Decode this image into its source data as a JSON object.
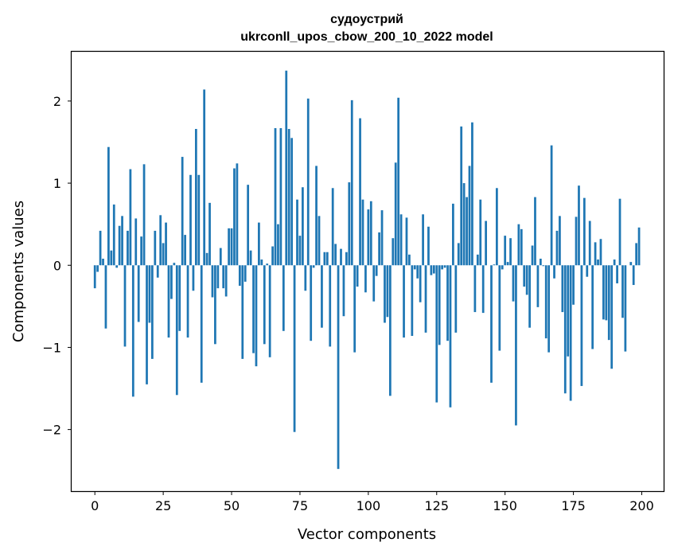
{
  "chart_data": {
    "type": "bar",
    "title": "судоустрий",
    "subtitle": "ukrconll_upos_cbow_200_10_2022 model",
    "xlabel": "Vector components",
    "ylabel": "Components values",
    "xlim": [
      -8.5,
      208
    ],
    "ylim": [
      -2.75,
      2.6
    ],
    "xticks": [
      0,
      25,
      50,
      75,
      100,
      125,
      150,
      175,
      200
    ],
    "xtick_labels": [
      "0",
      "25",
      "50",
      "75",
      "100",
      "125",
      "150",
      "175",
      "200"
    ],
    "yticks": [
      -2,
      -1,
      0,
      1,
      2
    ],
    "ytick_labels": [
      "−2",
      "−1",
      "0",
      "1",
      "2"
    ],
    "grid": false,
    "bar_color": "#1f77b4",
    "x": [
      0,
      1,
      2,
      3,
      4,
      5,
      6,
      7,
      8,
      9,
      10,
      11,
      12,
      13,
      14,
      15,
      16,
      17,
      18,
      19,
      20,
      21,
      22,
      23,
      24,
      25,
      26,
      27,
      28,
      29,
      30,
      31,
      32,
      33,
      34,
      35,
      36,
      37,
      38,
      39,
      40,
      41,
      42,
      43,
      44,
      45,
      46,
      47,
      48,
      49,
      50,
      51,
      52,
      53,
      54,
      55,
      56,
      57,
      58,
      59,
      60,
      61,
      62,
      63,
      64,
      65,
      66,
      67,
      68,
      69,
      70,
      71,
      72,
      73,
      74,
      75,
      76,
      77,
      78,
      79,
      80,
      81,
      82,
      83,
      84,
      85,
      86,
      87,
      88,
      89,
      90,
      91,
      92,
      93,
      94,
      95,
      96,
      97,
      98,
      99,
      100,
      101,
      102,
      103,
      104,
      105,
      106,
      107,
      108,
      109,
      110,
      111,
      112,
      113,
      114,
      115,
      116,
      117,
      118,
      119,
      120,
      121,
      122,
      123,
      124,
      125,
      126,
      127,
      128,
      129,
      130,
      131,
      132,
      133,
      134,
      135,
      136,
      137,
      138,
      139,
      140,
      141,
      142,
      143,
      144,
      145,
      146,
      147,
      148,
      149,
      150,
      151,
      152,
      153,
      154,
      155,
      156,
      157,
      158,
      159,
      160,
      161,
      162,
      163,
      164,
      165,
      166,
      167,
      168,
      169,
      170,
      171,
      172,
      173,
      174,
      175,
      176,
      177,
      178,
      179,
      180,
      181,
      182,
      183,
      184,
      185,
      186,
      187,
      188,
      189,
      190,
      191,
      192,
      193,
      194,
      195,
      196,
      197,
      198,
      199
    ],
    "values": [
      -0.28,
      -0.08,
      0.42,
      0.08,
      -0.77,
      1.44,
      0.18,
      0.74,
      -0.03,
      0.48,
      0.6,
      -0.99,
      0.42,
      1.17,
      -1.6,
      0.57,
      -0.69,
      0.35,
      1.23,
      -1.45,
      -0.7,
      -1.14,
      0.42,
      -0.15,
      0.61,
      0.27,
      0.52,
      -0.88,
      -0.41,
      0.03,
      -1.58,
      -0.8,
      1.32,
      0.37,
      -0.88,
      1.1,
      -0.31,
      1.66,
      1.1,
      -1.43,
      2.14,
      0.15,
      0.76,
      -0.39,
      -0.96,
      -0.28,
      0.21,
      -0.28,
      -0.38,
      0.45,
      0.45,
      1.18,
      1.24,
      -0.25,
      -1.14,
      -0.2,
      0.98,
      0.18,
      -1.07,
      -1.23,
      0.52,
      0.07,
      -0.96,
      0.02,
      -1.12,
      0.23,
      1.67,
      0.5,
      1.67,
      -0.8,
      2.37,
      1.66,
      1.55,
      -2.03,
      0.8,
      0.36,
      0.95,
      -0.31,
      2.03,
      -0.92,
      -0.03,
      1.21,
      0.6,
      -0.76,
      0.16,
      0.16,
      -0.99,
      0.94,
      0.26,
      -2.48,
      0.2,
      -0.62,
      0.16,
      1.01,
      2.01,
      -1.06,
      -0.26,
      1.79,
      0.8,
      -0.33,
      0.68,
      0.78,
      -0.44,
      -0.13,
      0.4,
      0.67,
      -0.7,
      -0.63,
      -1.59,
      0.33,
      1.25,
      2.04,
      0.62,
      -0.88,
      0.58,
      0.13,
      -0.86,
      -0.05,
      -0.16,
      -0.45,
      0.62,
      -0.82,
      0.47,
      -0.12,
      -0.1,
      -1.67,
      -0.97,
      -0.05,
      -0.03,
      -0.92,
      -1.73,
      0.75,
      -0.82,
      0.27,
      1.69,
      1.0,
      0.83,
      1.21,
      1.74,
      -0.57,
      0.13,
      0.8,
      -0.58,
      0.54,
      0.0,
      -1.43,
      0.01,
      0.94,
      -1.04,
      -0.05,
      0.36,
      0.04,
      0.33,
      -0.44,
      -1.95,
      0.5,
      0.44,
      -0.26,
      -0.36,
      -0.76,
      0.24,
      0.83,
      -0.51,
      0.08,
      -0.01,
      -0.89,
      -1.06,
      1.46,
      -0.16,
      0.42,
      0.6,
      -0.57,
      -1.56,
      -1.11,
      -1.65,
      -0.48,
      0.59,
      0.97,
      -1.47,
      0.82,
      -0.14,
      0.54,
      -1.02,
      0.28,
      0.07,
      0.32,
      -0.66,
      -0.67,
      -0.91,
      -1.26,
      0.07,
      -0.22,
      0.81,
      -0.64,
      -1.05,
      0.0,
      0.04,
      -0.24,
      0.27,
      0.46
    ]
  }
}
